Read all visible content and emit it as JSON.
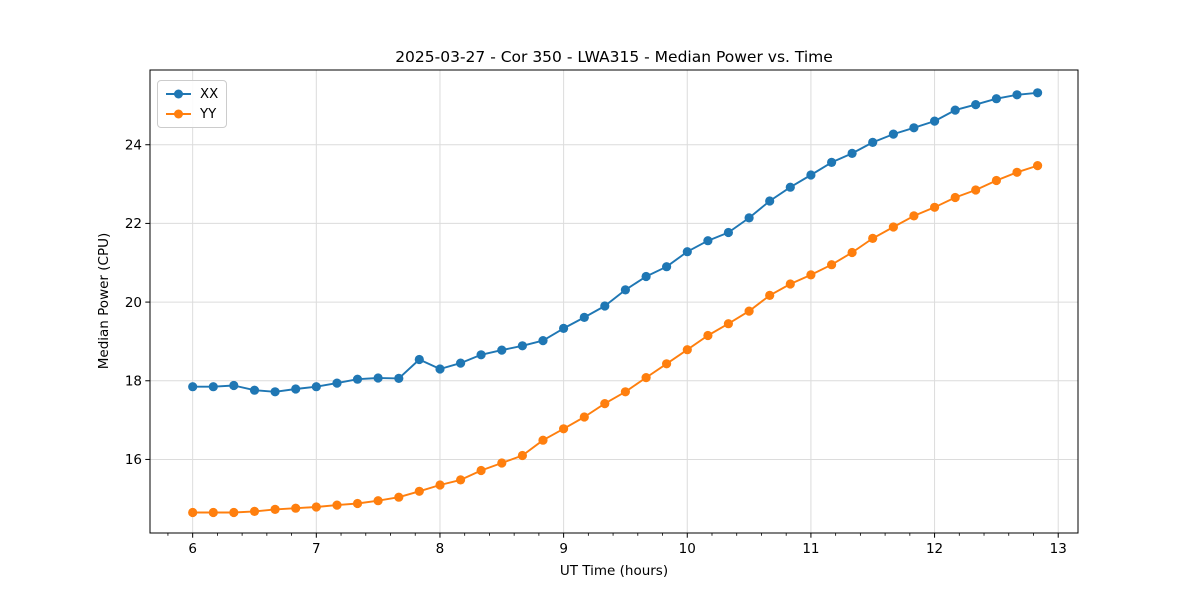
{
  "chart_data": {
    "type": "line",
    "title": "2025-03-27 - Cor 350 - LWA315 - Median Power vs. Time",
    "xlabel": "UT Time (hours)",
    "ylabel": "Median Power (CPU)",
    "xlim": [
      5.655,
      13.16
    ],
    "ylim": [
      14.13,
      25.9
    ],
    "xticks": [
      6,
      7,
      8,
      9,
      10,
      11,
      12,
      13
    ],
    "yticks": [
      16,
      18,
      20,
      22,
      24
    ],
    "x_minor_step": 0.2,
    "grid": true,
    "legend_position": "upper left",
    "grid_color": "#dcdcdc",
    "spine_color": "#000000",
    "x": [
      6.0,
      6.167,
      6.333,
      6.5,
      6.667,
      6.833,
      7.0,
      7.167,
      7.333,
      7.5,
      7.667,
      7.833,
      8.0,
      8.167,
      8.333,
      8.5,
      8.667,
      8.833,
      9.0,
      9.167,
      9.333,
      9.5,
      9.667,
      9.833,
      10.0,
      10.167,
      10.333,
      10.5,
      10.667,
      10.833,
      11.0,
      11.167,
      11.333,
      11.5,
      11.667,
      11.833,
      12.0,
      12.167,
      12.333,
      12.5,
      12.667,
      12.833
    ],
    "series": [
      {
        "name": "XX",
        "color": "#1f77b4",
        "values": [
          17.85,
          17.85,
          17.88,
          17.76,
          17.72,
          17.79,
          17.85,
          17.94,
          18.04,
          18.07,
          18.06,
          18.54,
          18.3,
          18.45,
          18.66,
          18.78,
          18.89,
          19.02,
          19.33,
          19.61,
          19.9,
          20.31,
          20.65,
          20.9,
          21.28,
          21.56,
          21.77,
          22.14,
          22.57,
          22.92,
          23.23,
          23.55,
          23.78,
          24.06,
          24.27,
          24.43,
          24.6,
          24.88,
          25.02,
          25.17,
          25.27,
          25.32
        ]
      },
      {
        "name": "YY",
        "color": "#ff7f0e",
        "values": [
          14.65,
          14.65,
          14.65,
          14.68,
          14.73,
          14.76,
          14.79,
          14.84,
          14.88,
          14.95,
          15.04,
          15.19,
          15.35,
          15.48,
          15.72,
          15.91,
          16.1,
          16.49,
          16.78,
          17.08,
          17.42,
          17.72,
          18.08,
          18.43,
          18.79,
          19.15,
          19.45,
          19.77,
          20.17,
          20.46,
          20.69,
          20.95,
          21.26,
          21.62,
          21.91,
          22.19,
          22.41,
          22.66,
          22.85,
          23.09,
          23.3,
          23.47
        ]
      }
    ]
  }
}
